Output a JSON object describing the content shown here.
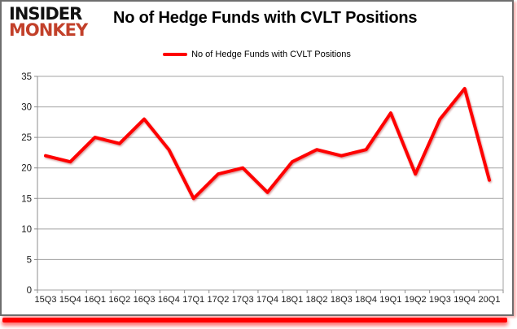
{
  "brand": {
    "line1": "INSIDER",
    "line2": "MONKEY"
  },
  "title": "No of Hedge Funds with CVLT Positions",
  "legend": {
    "label": "No of Hedge Funds with CVLT Positions"
  },
  "colors": {
    "line": "#fe0000",
    "line_shadow": "#990000",
    "brand_black": "#111111",
    "brand_red": "#c2402a",
    "grid": "#a3a3a3",
    "axis": "#8c8c8c",
    "tick_label": "#1a1a1a",
    "bottom_bar": "#fe0000"
  },
  "chart_data": {
    "type": "line",
    "title": "No of Hedge Funds with CVLT Positions",
    "series_name": "No of Hedge Funds with CVLT Positions",
    "categories": [
      "15Q3",
      "15Q4",
      "16Q1",
      "16Q2",
      "16Q3",
      "16Q4",
      "17Q1",
      "17Q2",
      "17Q3",
      "17Q4",
      "18Q1",
      "18Q2",
      "18Q3",
      "18Q4",
      "19Q1",
      "19Q2",
      "19Q3",
      "19Q4",
      "20Q1"
    ],
    "values": [
      22,
      21,
      25,
      24,
      28,
      23,
      15,
      19,
      20,
      16,
      21,
      23,
      22,
      23,
      29,
      19,
      28,
      33,
      18
    ],
    "xlabel": "",
    "ylabel": "",
    "ylim": [
      0,
      35
    ],
    "ytick_step": 5,
    "yticks": [
      0,
      5,
      10,
      15,
      20,
      25,
      30,
      35
    ],
    "grid": true,
    "legend_position": "top-center"
  }
}
